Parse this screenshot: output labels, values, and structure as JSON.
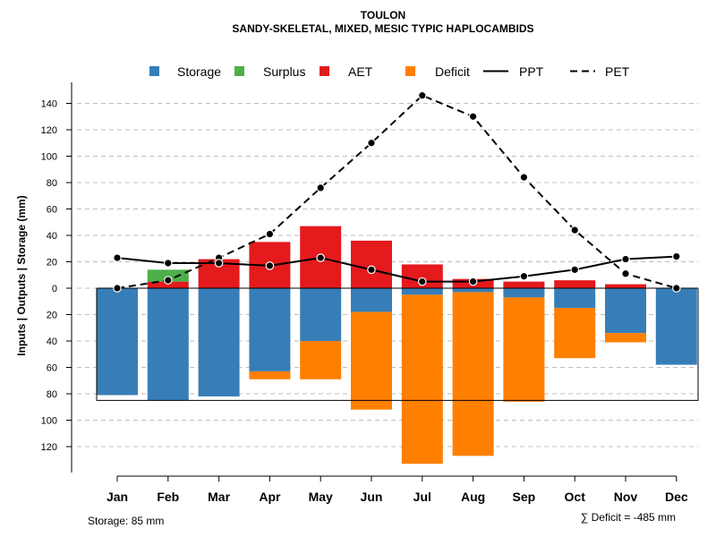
{
  "chart_data": {
    "type": "bar",
    "title": "TOULON",
    "subtitle": "SANDY-SKELETAL, MIXED, MESIC TYPIC HAPLOCAMBIDS",
    "ylabel": "Inputs | Outputs | Storage    (mm)",
    "categories": [
      "Jan",
      "Feb",
      "Mar",
      "Apr",
      "May",
      "Jun",
      "Jul",
      "Aug",
      "Sep",
      "Oct",
      "Nov",
      "Dec"
    ],
    "ylim": [
      -140,
      150
    ],
    "yticks": [
      140,
      120,
      100,
      80,
      60,
      40,
      20,
      0,
      -20,
      -40,
      -60,
      -80,
      -100,
      -120
    ],
    "ytick_labels": [
      "140",
      "120",
      "100",
      "80",
      "60",
      "40",
      "20",
      "0",
      "20",
      "40",
      "60",
      "80",
      "100",
      "120"
    ],
    "storage_capacity": 85,
    "legend": {
      "position": "top",
      "entries": [
        {
          "label": "Storage",
          "kind": "box",
          "color": "#377eb8"
        },
        {
          "label": "Surplus",
          "kind": "box",
          "color": "#4daf4a"
        },
        {
          "label": "AET",
          "kind": "box",
          "color": "#e41a1c"
        },
        {
          "label": "Deficit",
          "kind": "box",
          "color": "#ff7f00"
        },
        {
          "label": "PPT",
          "kind": "solid"
        },
        {
          "label": "PET",
          "kind": "dashed"
        }
      ]
    },
    "series": [
      {
        "name": "AET",
        "values": [
          0,
          5,
          22,
          35,
          47,
          36,
          18,
          7,
          5,
          6,
          3,
          0
        ]
      },
      {
        "name": "Surplus",
        "values": [
          0,
          9,
          0,
          0,
          0,
          0,
          0,
          0,
          0,
          0,
          0,
          0
        ]
      },
      {
        "name": "Storage",
        "values": [
          81,
          85,
          82,
          63,
          40,
          18,
          5,
          3,
          7,
          15,
          34,
          58
        ]
      },
      {
        "name": "Deficit",
        "values": [
          0,
          0,
          0,
          6,
          29,
          74,
          128,
          124,
          79,
          38,
          7,
          0
        ]
      },
      {
        "name": "PPT",
        "values": [
          23,
          19,
          19,
          17,
          23,
          14,
          5,
          5,
          9,
          14,
          22,
          24
        ]
      },
      {
        "name": "PET",
        "values": [
          0,
          6,
          23,
          41,
          76,
          110,
          146,
          130,
          84,
          44,
          11,
          0
        ]
      }
    ],
    "footnote_left": "Storage: 85 mm",
    "footnote_right": "∑ Deficit = -485 mm",
    "colors": {
      "storage": "#377eb8",
      "surplus": "#4daf4a",
      "aet": "#e41a1c",
      "deficit": "#ff7f00",
      "line": "#000000",
      "grid": "#bebebe"
    }
  }
}
